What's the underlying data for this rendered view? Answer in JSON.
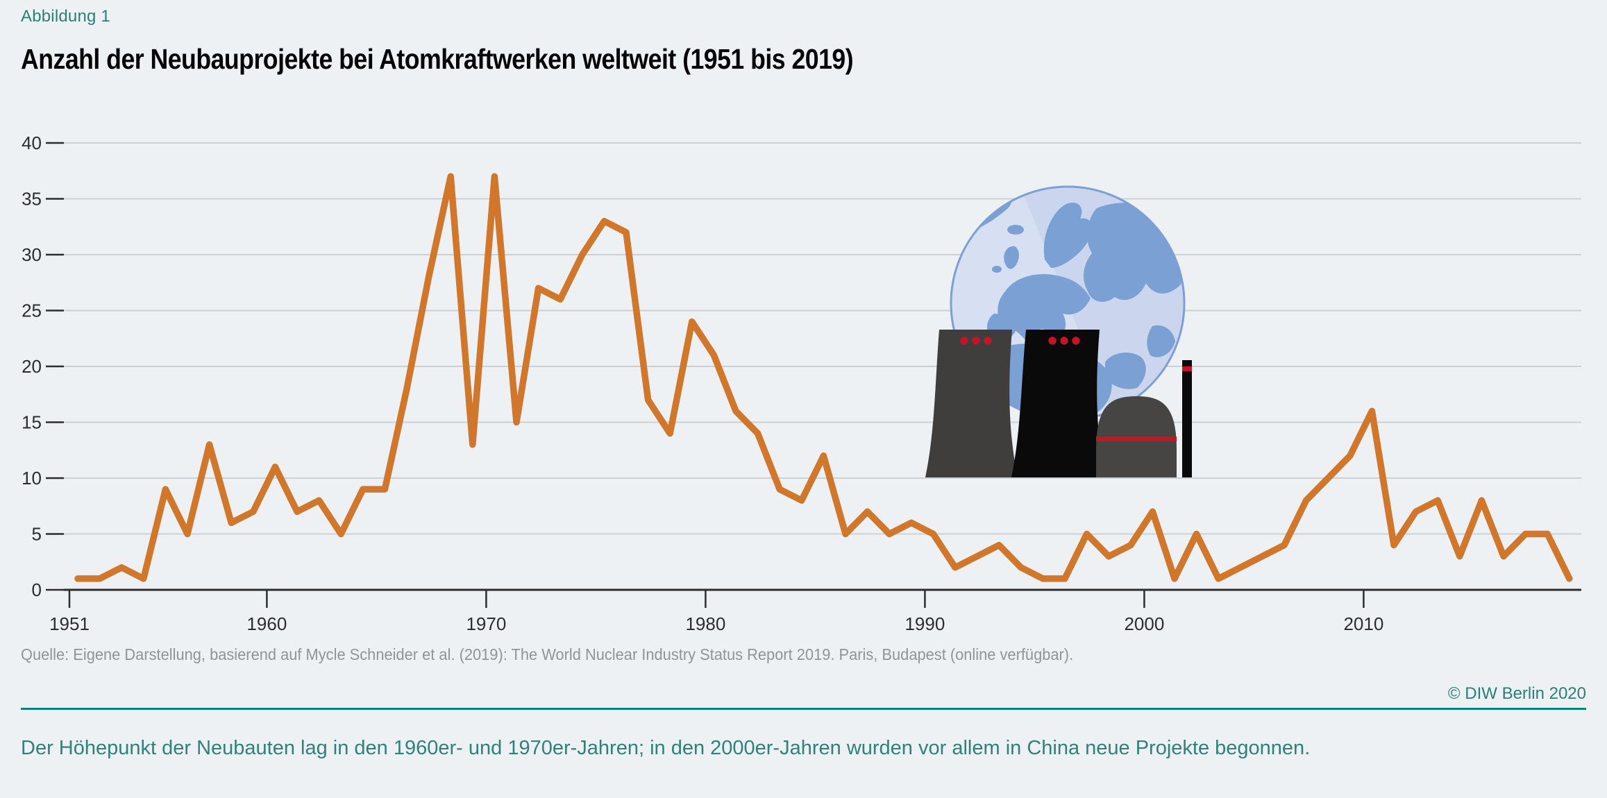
{
  "figure_label": "Abbildung 1",
  "title": "Anzahl der Neubauprojekte bei Atomkraftwerken weltweit (1951 bis 2019)",
  "source": "Quelle: Eigene Darstellung, basierend auf Mycle Schneider et al. (2019): The World Nuclear Industry Status Report 2019. Paris, Budapest (online verfügbar).",
  "copyright": "© DIW Berlin 2020",
  "caption": "Der Höhepunkt der Neubauten lag in den 1960er- und 1970er-Jahren; in den 2000er-Jahren wurden vor allem in China neue Projekte begonnen.",
  "colors": {
    "background": "#edf1f4",
    "accent_teal": "#2a7f77",
    "rule_teal": "#0f807a",
    "line_orange": "#d0772c",
    "gridline": "#ccd1d8",
    "axis": "#2d2d2d",
    "source_gray": "#8f9499",
    "signal_red": "#c41428",
    "tower_dark": "#403e3d",
    "tower_black": "#0a0a0b",
    "globe_ocean": "#cbd6ee",
    "globe_land": "#7ba0d4"
  },
  "icons": {
    "globe": "globe-icon",
    "cooling_towers": "cooling-tower-icon",
    "reactor_dome": "reactor-dome-icon",
    "chimney": "chimney-icon"
  },
  "chart_data": {
    "type": "line",
    "title": "Anzahl der Neubauprojekte bei Atomkraftwerken weltweit (1951 bis 2019)",
    "xlabel": "",
    "ylabel": "",
    "ylim": [
      0,
      40
    ],
    "grid": true,
    "legend_position": "none",
    "xticks": [
      1951,
      1960,
      1970,
      1980,
      1990,
      2000,
      2010
    ],
    "yticks": [
      0,
      5,
      10,
      15,
      20,
      25,
      30,
      35,
      40
    ],
    "x": [
      1951,
      1952,
      1953,
      1954,
      1955,
      1956,
      1957,
      1958,
      1959,
      1960,
      1961,
      1962,
      1963,
      1964,
      1965,
      1966,
      1967,
      1968,
      1969,
      1970,
      1971,
      1972,
      1973,
      1974,
      1975,
      1976,
      1977,
      1978,
      1979,
      1980,
      1981,
      1982,
      1983,
      1984,
      1985,
      1986,
      1987,
      1988,
      1989,
      1990,
      1991,
      1992,
      1993,
      1994,
      1995,
      1996,
      1997,
      1998,
      1999,
      2000,
      2001,
      2002,
      2003,
      2004,
      2005,
      2006,
      2007,
      2008,
      2009,
      2010,
      2011,
      2012,
      2013,
      2014,
      2015,
      2016,
      2017,
      2018,
      2019
    ],
    "values": [
      1,
      1,
      2,
      1,
      9,
      5,
      13,
      6,
      7,
      11,
      7,
      8,
      5,
      9,
      9,
      18,
      28,
      37,
      13,
      37,
      15,
      27,
      26,
      30,
      33,
      32,
      17,
      14,
      24,
      21,
      16,
      14,
      9,
      8,
      12,
      5,
      7,
      5,
      6,
      5,
      2,
      3,
      4,
      2,
      1,
      1,
      5,
      3,
      4,
      7,
      1,
      5,
      1,
      2,
      3,
      4,
      8,
      10,
      12,
      16,
      4,
      7,
      8,
      3,
      8,
      3,
      5,
      5,
      1
    ],
    "series_color": "#d0772c"
  }
}
